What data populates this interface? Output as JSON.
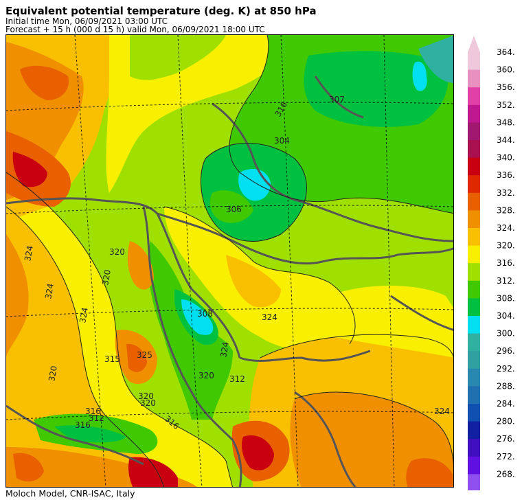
{
  "header": {
    "title": "Equivalent potential temperature (deg. K) at 850 hPa",
    "initial_time": "Initial time  Mon, 06/09/2021  03:00 UTC",
    "forecast": "Forecast  +  15 h  (000 d 15 h)  valid Mon, 06/09/2021 18:00 UTC"
  },
  "footer": {
    "credit": "Moloch Model, CNR-ISAC, Italy"
  },
  "colorbar": {
    "levels": [
      "364.",
      "360.",
      "356.",
      "352.",
      "348.",
      "344.",
      "340.",
      "336.",
      "332.",
      "328.",
      "324.",
      "320.",
      "316.",
      "312.",
      "308.",
      "304.",
      "300.",
      "296.",
      "292.",
      "288.",
      "284.",
      "280.",
      "276.",
      "272.",
      "268."
    ],
    "colors": [
      "#f0c8dc",
      "#e890c0",
      "#e040a8",
      "#c01890",
      "#a01870",
      "#a81050",
      "#c80010",
      "#e02800",
      "#e86000",
      "#f09000",
      "#f8c000",
      "#f8f000",
      "#a0e000",
      "#40c800",
      "#00c040",
      "#00e0f0",
      "#30b0a0",
      "#30a0a0",
      "#2888b0",
      "#2070b0",
      "#1050b0",
      "#1020a0",
      "#4010c0",
      "#6010e0",
      "#9050f0"
    ],
    "top_arrow_color": "#f0c8dc",
    "bottom_arrow_color": "#c070f0"
  },
  "map_labels": [
    {
      "text": "324"
    },
    {
      "text": "324"
    },
    {
      "text": "324"
    },
    {
      "text": "320"
    },
    {
      "text": "320"
    },
    {
      "text": "320"
    },
    {
      "text": "320"
    },
    {
      "text": "320"
    },
    {
      "text": "316"
    },
    {
      "text": "316"
    },
    {
      "text": "316"
    },
    {
      "text": "312"
    },
    {
      "text": "312"
    },
    {
      "text": "307"
    },
    {
      "text": "304"
    },
    {
      "text": "306"
    },
    {
      "text": "308"
    },
    {
      "text": "324"
    },
    {
      "text": "324"
    },
    {
      "text": "324"
    },
    {
      "text": "320"
    },
    {
      "text": "315"
    },
    {
      "text": "325"
    },
    {
      "text": "316"
    }
  ]
}
